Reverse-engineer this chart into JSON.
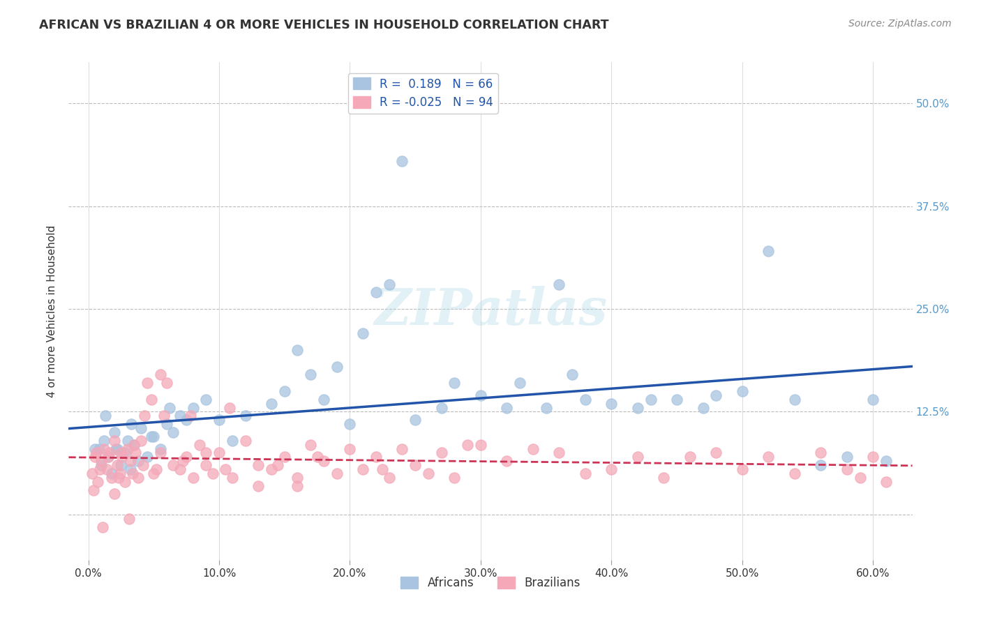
{
  "title": "AFRICAN VS BRAZILIAN 4 OR MORE VEHICLES IN HOUSEHOLD CORRELATION CHART",
  "source": "Source: ZipAtlas.com",
  "xlabel": "",
  "ylabel": "4 or more Vehicles in Household",
  "xticklabels": [
    "0.0%",
    "10.0%",
    "20.0%",
    "30.0%",
    "40.0%",
    "50.0%",
    "60.0%"
  ],
  "xticks": [
    0.0,
    10.0,
    20.0,
    30.0,
    40.0,
    50.0,
    60.0
  ],
  "yticklabels": [
    "",
    "12.5%",
    "25.0%",
    "37.5%",
    "50.0%"
  ],
  "yticks": [
    0.0,
    12.5,
    25.0,
    37.5,
    50.0
  ],
  "xlim": [
    -1.5,
    63
  ],
  "ylim": [
    -5.5,
    55
  ],
  "african_color": "#a8c4e0",
  "brazilian_color": "#f4a8b8",
  "african_line_color": "#2255aa",
  "brazilian_line_color": "#cc3355",
  "african_R": 0.189,
  "african_N": 66,
  "brazilian_R": -0.025,
  "brazilian_N": 94,
  "legend_african_label": "Africans",
  "legend_brazilian_label": "Brazilians",
  "watermark": "ZIPatlas",
  "africans_x": [
    0.5,
    1.0,
    1.2,
    1.5,
    1.8,
    2.0,
    2.2,
    2.5,
    2.8,
    3.0,
    3.2,
    3.5,
    3.8,
    4.0,
    4.5,
    5.0,
    5.5,
    6.0,
    6.5,
    7.0,
    8.0,
    9.0,
    10.0,
    11.0,
    12.0,
    14.0,
    15.0,
    16.0,
    17.0,
    18.0,
    19.0,
    20.0,
    21.0,
    22.0,
    23.0,
    25.0,
    27.0,
    28.0,
    30.0,
    32.0,
    33.0,
    35.0,
    37.0,
    38.0,
    40.0,
    42.0,
    43.0,
    45.0,
    47.0,
    48.0,
    50.0,
    52.0,
    54.0,
    56.0,
    58.0,
    60.0,
    61.0,
    0.8,
    1.3,
    2.1,
    3.3,
    4.8,
    6.2,
    7.5,
    24.0,
    36.0
  ],
  "africans_y": [
    8.0,
    6.0,
    9.0,
    7.0,
    5.0,
    10.0,
    8.0,
    6.0,
    7.5,
    9.0,
    5.5,
    8.5,
    6.5,
    10.5,
    7.0,
    9.5,
    8.0,
    11.0,
    10.0,
    12.0,
    13.0,
    14.0,
    11.5,
    9.0,
    12.0,
    13.5,
    15.0,
    20.0,
    17.0,
    14.0,
    18.0,
    11.0,
    22.0,
    27.0,
    28.0,
    11.5,
    13.0,
    16.0,
    14.5,
    13.0,
    16.0,
    13.0,
    17.0,
    14.0,
    13.5,
    13.0,
    14.0,
    14.0,
    13.0,
    14.5,
    15.0,
    32.0,
    14.0,
    6.0,
    7.0,
    14.0,
    6.5,
    8.0,
    12.0,
    8.0,
    11.0,
    9.5,
    13.0,
    11.5,
    43.0,
    28.0
  ],
  "brazilians_x": [
    0.3,
    0.5,
    0.7,
    1.0,
    1.2,
    1.4,
    1.6,
    1.8,
    2.0,
    2.2,
    2.4,
    2.6,
    2.8,
    3.0,
    3.2,
    3.4,
    3.6,
    3.8,
    4.0,
    4.2,
    4.5,
    4.8,
    5.0,
    5.5,
    6.0,
    6.5,
    7.0,
    7.5,
    8.0,
    8.5,
    9.0,
    9.5,
    10.0,
    11.0,
    12.0,
    13.0,
    14.0,
    15.0,
    16.0,
    17.0,
    18.0,
    19.0,
    20.0,
    21.0,
    22.0,
    23.0,
    24.0,
    25.0,
    26.0,
    27.0,
    28.0,
    29.0,
    30.0,
    32.0,
    34.0,
    36.0,
    38.0,
    40.0,
    42.0,
    44.0,
    46.0,
    48.0,
    50.0,
    52.0,
    54.0,
    56.0,
    58.0,
    59.0,
    60.0,
    61.0,
    0.9,
    1.5,
    2.3,
    3.5,
    5.2,
    7.2,
    10.5,
    14.5,
    17.5,
    22.5,
    0.4,
    1.1,
    2.0,
    3.1,
    4.3,
    5.8,
    7.8,
    10.8,
    13.0,
    16.0,
    0.6,
    2.5,
    5.5,
    9.0
  ],
  "brazilians_y": [
    5.0,
    7.0,
    4.0,
    6.5,
    8.0,
    5.5,
    7.5,
    4.5,
    9.0,
    6.0,
    5.0,
    7.0,
    4.0,
    8.0,
    6.5,
    5.0,
    7.5,
    4.5,
    9.0,
    6.0,
    16.0,
    14.0,
    5.0,
    17.0,
    16.0,
    6.0,
    5.5,
    7.0,
    4.5,
    8.5,
    6.0,
    5.0,
    7.5,
    4.5,
    9.0,
    6.0,
    5.5,
    7.0,
    4.5,
    8.5,
    6.5,
    5.0,
    8.0,
    5.5,
    7.0,
    4.5,
    8.0,
    6.0,
    5.0,
    7.5,
    4.5,
    8.5,
    8.5,
    6.5,
    8.0,
    7.5,
    5.0,
    5.5,
    7.0,
    4.5,
    7.0,
    7.5,
    5.5,
    7.0,
    5.0,
    7.5,
    5.5,
    4.5,
    7.0,
    4.0,
    5.5,
    7.0,
    4.5,
    8.5,
    5.5,
    6.5,
    5.5,
    6.0,
    7.0,
    5.5,
    3.0,
    -1.5,
    2.5,
    -0.5,
    12.0,
    12.0,
    12.0,
    13.0,
    3.5,
    3.5,
    7.5,
    7.5,
    7.5,
    7.5
  ]
}
